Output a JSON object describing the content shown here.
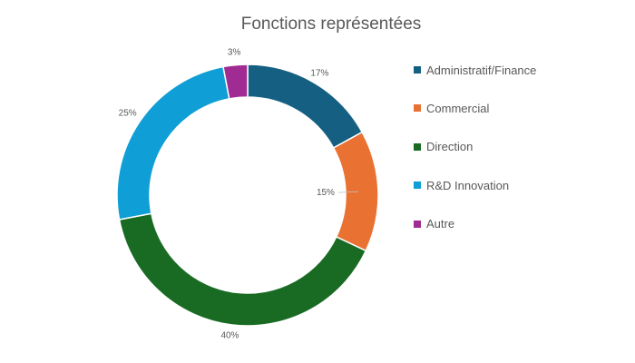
{
  "chart_data": {
    "type": "pie",
    "variant": "donut",
    "title": "Fonctions représentées",
    "categories": [
      "Administratif/Finance",
      "Commercial",
      "Direction",
      "R&D Innovation",
      "Autre"
    ],
    "values": [
      17,
      15,
      40,
      25,
      3
    ],
    "labels": [
      "17%",
      "15%",
      "40%",
      "25%",
      "3%"
    ],
    "colors": [
      "#156082",
      "#E97132",
      "#196B24",
      "#0F9ED5",
      "#A02B93"
    ],
    "legend_position": "right"
  }
}
